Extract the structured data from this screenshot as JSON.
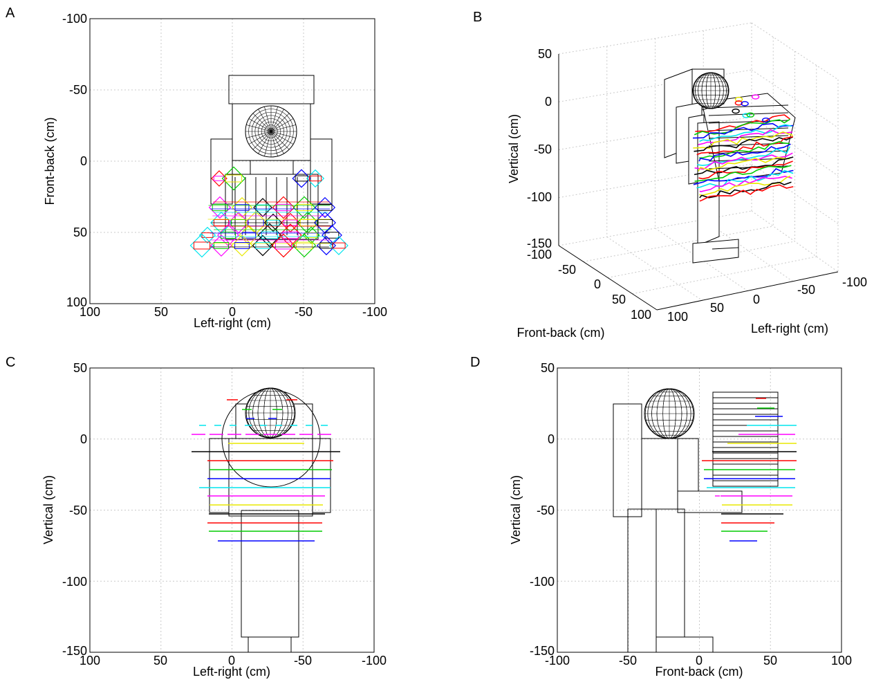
{
  "colors": {
    "grid": "#c8c8c8",
    "traces": [
      "#ff0000",
      "#00cc00",
      "#0000ff",
      "#00e5ee",
      "#ff00ff",
      "#e8e800",
      "#000000"
    ]
  },
  "panels": [
    {
      "id": "A",
      "label": "A",
      "xlabel": "Left-right (cm)",
      "ylabel": "Front-back (cm)",
      "xticks": [
        "100",
        "50",
        "0",
        "-50",
        "-100"
      ],
      "yticks": [
        "-100",
        "-50",
        "0",
        "50",
        "100"
      ]
    },
    {
      "id": "B",
      "label": "B",
      "xlabel": "Left-right (cm)",
      "ylabel": "Front-back (cm)",
      "zlabel": "Vertical (cm)",
      "xticks": [
        "100",
        "50",
        "0",
        "-50",
        "-100"
      ],
      "yticks": [
        "-100",
        "-50",
        "0",
        "50",
        "100"
      ],
      "zticks": [
        "50",
        "0",
        "-50",
        "-100",
        "-150"
      ]
    },
    {
      "id": "C",
      "label": "C",
      "xlabel": "Left-right (cm)",
      "ylabel": "Vertical (cm)",
      "xticks": [
        "100",
        "50",
        "0",
        "-50",
        "-100"
      ],
      "yticks": [
        "50",
        "0",
        "-50",
        "-100",
        "-150"
      ]
    },
    {
      "id": "D",
      "label": "D",
      "xlabel": "Front-back (cm)",
      "ylabel": "Vertical (cm)",
      "xticks": [
        "-100",
        "-50",
        "0",
        "50",
        "100"
      ],
      "yticks": [
        "50",
        "0",
        "-50",
        "-100",
        "-150"
      ]
    }
  ]
}
